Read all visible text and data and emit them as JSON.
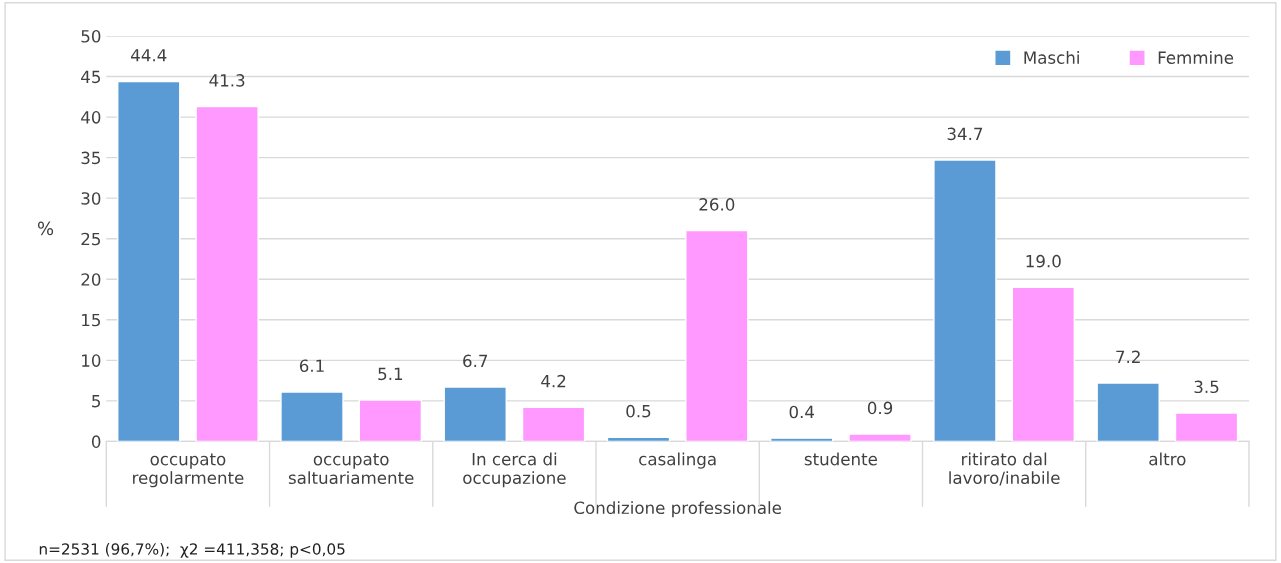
{
  "chart_data": {
    "type": "bar",
    "xlabel": "Condizione professionale",
    "ylabel": "%",
    "categories": [
      "occupato\nregolarmente",
      "occupato\nsaltuariamente",
      "In cerca di\noccupazione",
      "casalinga",
      "studente",
      "ritirato dal\nlavoro/inabile",
      "altro"
    ],
    "series": [
      {
        "name": "Maschi",
        "color": "#5b9bd5",
        "values": [
          44.4,
          6.1,
          6.7,
          0.5,
          0.4,
          34.7,
          7.2
        ],
        "value_labels": [
          "44.4",
          "6.1",
          "6.7",
          "0.5",
          "0.4",
          "34.7",
          "7.2"
        ]
      },
      {
        "name": "Femmine",
        "color": "#ff99ff",
        "values": [
          41.3,
          5.1,
          4.2,
          26.0,
          0.9,
          19.0,
          3.5
        ],
        "value_labels": [
          "41.3",
          "5.1",
          "4.2",
          "26.0",
          "0.9",
          "19.0",
          "3.5"
        ]
      }
    ],
    "ylim": [
      0,
      50
    ],
    "yticks": [
      0,
      5,
      10,
      15,
      20,
      25,
      30,
      35,
      40,
      45,
      50
    ],
    "grid": "y",
    "legend": "top right",
    "annotations": [
      "n=2531 (96,7%);  χ2 =411,358; p<0,05"
    ]
  }
}
